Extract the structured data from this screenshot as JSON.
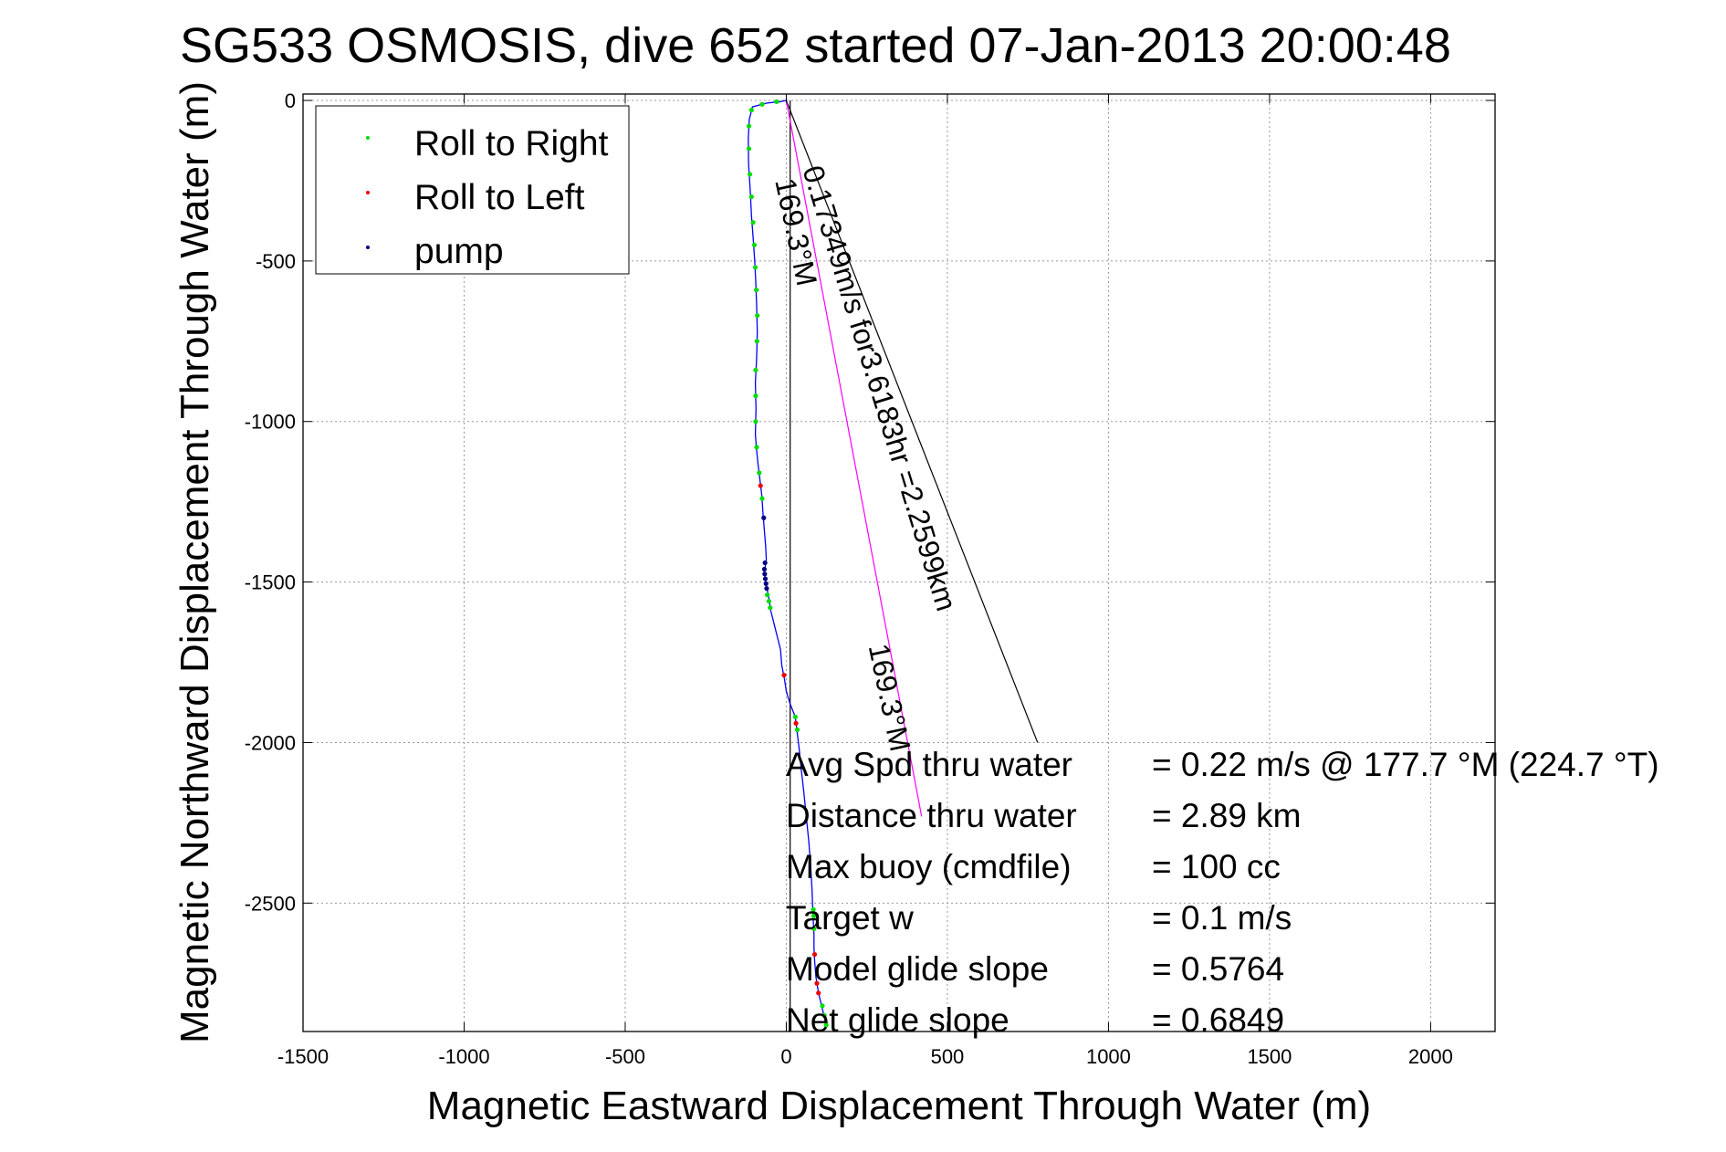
{
  "chart_data": {
    "type": "line",
    "title": "SG533 OSMOSIS, dive 652 started 07-Jan-2013 20:00:48",
    "xlabel": "Magnetic Eastward Displacement Through Water (m)",
    "ylabel": "Magnetic Northward Displacement Through Water (m)",
    "xlim": [
      -1500,
      2200
    ],
    "ylim": [
      -2900,
      20
    ],
    "xticks": [
      -1500,
      -1000,
      -500,
      0,
      500,
      1000,
      1500,
      2000
    ],
    "yticks": [
      0,
      -500,
      -1000,
      -1500,
      -2000,
      -2500
    ],
    "grid": true,
    "legend_position": "top-left",
    "legend": [
      {
        "name": "Roll to Right",
        "color": "#00dd00"
      },
      {
        "name": "Roll to Left",
        "color": "#ee0000"
      },
      {
        "name": "pump",
        "color": "#000080"
      }
    ],
    "track": {
      "color": "#0000ff",
      "points": [
        [
          0,
          0
        ],
        [
          -20,
          -4
        ],
        [
          -60,
          -8
        ],
        [
          -105,
          -20
        ],
        [
          -115,
          -60
        ],
        [
          -118,
          -120
        ],
        [
          -117,
          -200
        ],
        [
          -112,
          -280
        ],
        [
          -108,
          -360
        ],
        [
          -102,
          -440
        ],
        [
          -98,
          -500
        ],
        [
          -95,
          -560
        ],
        [
          -92,
          -640
        ],
        [
          -90,
          -720
        ],
        [
          -92,
          -800
        ],
        [
          -96,
          -880
        ],
        [
          -94,
          -960
        ],
        [
          -96,
          -1040
        ],
        [
          -93,
          -1080
        ],
        [
          -88,
          -1130
        ],
        [
          -82,
          -1180
        ],
        [
          -76,
          -1230
        ],
        [
          -72,
          -1290
        ],
        [
          -68,
          -1340
        ],
        [
          -64,
          -1390
        ],
        [
          -62,
          -1430
        ],
        [
          -68,
          -1470
        ],
        [
          -62,
          -1510
        ],
        [
          -54,
          -1550
        ],
        [
          -48,
          -1590
        ],
        [
          -38,
          -1630
        ],
        [
          -28,
          -1670
        ],
        [
          -18,
          -1710
        ],
        [
          -14,
          -1760
        ],
        [
          -6,
          -1800
        ],
        [
          0,
          -1840
        ],
        [
          12,
          -1880
        ],
        [
          28,
          -1920
        ],
        [
          34,
          -1970
        ],
        [
          40,
          -2020
        ],
        [
          46,
          -2080
        ],
        [
          54,
          -2150
        ],
        [
          62,
          -2230
        ],
        [
          70,
          -2310
        ],
        [
          76,
          -2390
        ],
        [
          80,
          -2460
        ],
        [
          82,
          -2520
        ],
        [
          84,
          -2560
        ],
        [
          86,
          -2600
        ],
        [
          86,
          -2640
        ],
        [
          88,
          -2680
        ],
        [
          92,
          -2730
        ],
        [
          100,
          -2780
        ],
        [
          112,
          -2830
        ],
        [
          124,
          -2880
        ]
      ]
    },
    "roll_right_points": [
      [
        -30,
        -4
      ],
      [
        -75,
        -12
      ],
      [
        -108,
        -30
      ],
      [
        -116,
        -80
      ],
      [
        -116,
        -150
      ],
      [
        -113,
        -230
      ],
      [
        -108,
        -300
      ],
      [
        -103,
        -380
      ],
      [
        -99,
        -450
      ],
      [
        -96,
        -520
      ],
      [
        -93,
        -590
      ],
      [
        -90,
        -670
      ],
      [
        -91,
        -750
      ],
      [
        -95,
        -840
      ],
      [
        -95,
        -920
      ],
      [
        -95,
        -1000
      ],
      [
        -92,
        -1080
      ],
      [
        -84,
        -1160
      ],
      [
        -75,
        -1240
      ],
      [
        -59,
        -1540
      ],
      [
        -54,
        -1560
      ],
      [
        -50,
        -1580
      ],
      [
        28,
        -1920
      ],
      [
        34,
        -1960
      ],
      [
        84,
        -2520
      ],
      [
        85,
        -2540
      ],
      [
        86,
        -2580
      ],
      [
        112,
        -2820
      ],
      [
        118,
        -2850
      ],
      [
        124,
        -2880
      ]
    ],
    "roll_left_points": [
      [
        -80,
        -1200
      ],
      [
        -7,
        -1790
      ],
      [
        30,
        -1940
      ],
      [
        88,
        -2660
      ],
      [
        95,
        -2750
      ],
      [
        100,
        -2780
      ]
    ],
    "pump_points": [
      [
        -70,
        -1300
      ],
      [
        -66,
        -1440
      ],
      [
        -68,
        -1460
      ],
      [
        -67,
        -1475
      ],
      [
        -65,
        -1490
      ],
      [
        -63,
        -1505
      ],
      [
        -61,
        -1520
      ]
    ],
    "lines": [
      {
        "name": "black-ray",
        "color": "#000000",
        "points": [
          [
            0,
            0
          ],
          [
            780,
            -2000
          ]
        ]
      },
      {
        "name": "black-vertical",
        "color": "#000000",
        "points": [
          [
            12,
            0
          ],
          [
            12,
            -2900
          ]
        ]
      },
      {
        "name": "magenta-line",
        "color": "#ff00ff",
        "points": [
          [
            0,
            0
          ],
          [
            420,
            -2230
          ]
        ]
      }
    ],
    "rotated_annotations": [
      {
        "text": "0.17349m/s for3.6183hr =2.2599km",
        "x": 50,
        "y": -215,
        "angle": 73
      },
      {
        "text": "169.3°M",
        "x": -35,
        "y": -250,
        "angle": 78
      },
      {
        "text": "169.3°M",
        "x": 255,
        "y": -1700,
        "angle": 78
      }
    ],
    "stats": [
      {
        "label": "Avg Spd thru water",
        "value": "=  0.22 m/s @ 177.7 °M (224.7 °T)"
      },
      {
        "label": "Distance thru water",
        "value": "=  2.89 km"
      },
      {
        "label": "Max buoy (cmdfile)",
        "value": "= 100 cc"
      },
      {
        "label": "Target w",
        "value": "= 0.1 m/s"
      },
      {
        "label": "Model glide slope",
        "value": "= 0.5764"
      },
      {
        "label": "Net glide slope",
        "value": "= 0.6849"
      }
    ]
  }
}
